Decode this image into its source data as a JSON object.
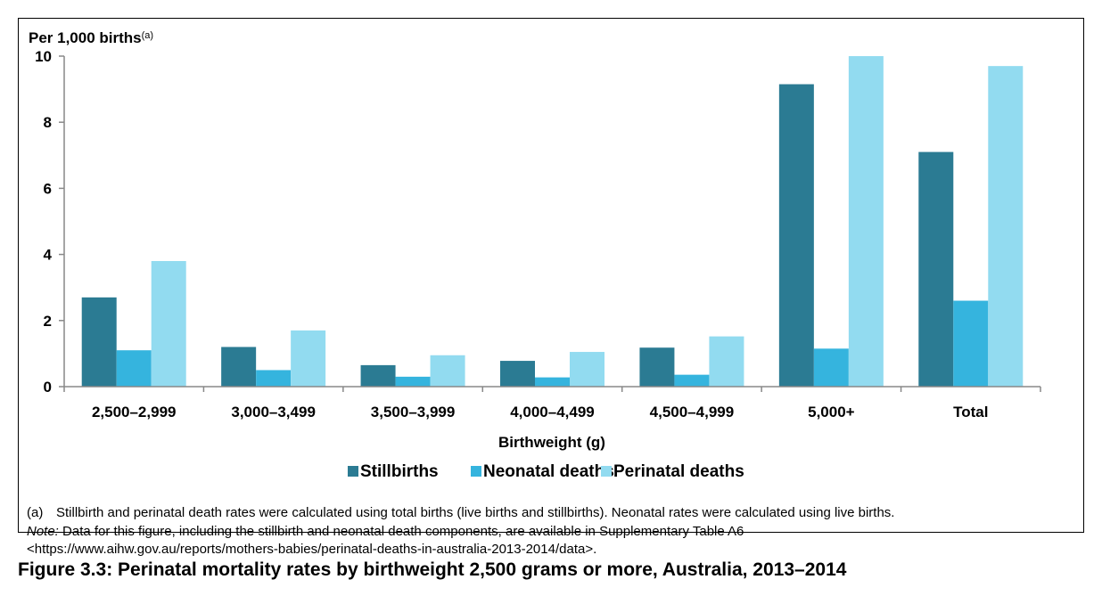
{
  "chart_data": {
    "type": "bar",
    "ylabel": "Per 1,000 births",
    "ylabel_sup": "(a)",
    "xlabel": "Birthweight (g)",
    "ylim": [
      0,
      10
    ],
    "yticks": [
      "0",
      "2",
      "4",
      "6",
      "8",
      "10"
    ],
    "categories": [
      "2,500–2,999",
      "3,000–3,499",
      "3,500–3,999",
      "4,000–4,499",
      "4,500–4,999",
      "5,000+",
      "Total"
    ],
    "series": [
      {
        "name": "Stillbirths",
        "color": "#2b7b93",
        "values": [
          2.7,
          1.2,
          0.65,
          0.78,
          1.18,
          9.15,
          7.1
        ]
      },
      {
        "name": "Neonatal deaths",
        "color": "#35b4de",
        "values": [
          1.1,
          0.5,
          0.3,
          0.28,
          0.36,
          1.15,
          2.6
        ]
      },
      {
        "name": "Perinatal deaths",
        "color": "#92dbf0",
        "values": [
          3.8,
          1.7,
          0.95,
          1.05,
          1.52,
          10.0,
          9.7
        ]
      }
    ],
    "legend_position": "bottom",
    "grid": false
  },
  "footnote": {
    "label": "(a)",
    "text": "Stillbirth and perinatal death rates were calculated using total births (live births and stillbirths). Neonatal rates were calculated using live births."
  },
  "note": {
    "label": "Note:",
    "line1": " Data for this figure, including the stillbirth and neonatal death components, are available in Supplementary Table A6",
    "line2": "<https://www.aihw.gov.au/reports/mothers-babies/perinatal-deaths-in-australia-2013-2014/data>."
  },
  "caption": "Figure 3.3: Perinatal mortality rates by birthweight 2,500 grams or more, Australia, 2013–2014"
}
